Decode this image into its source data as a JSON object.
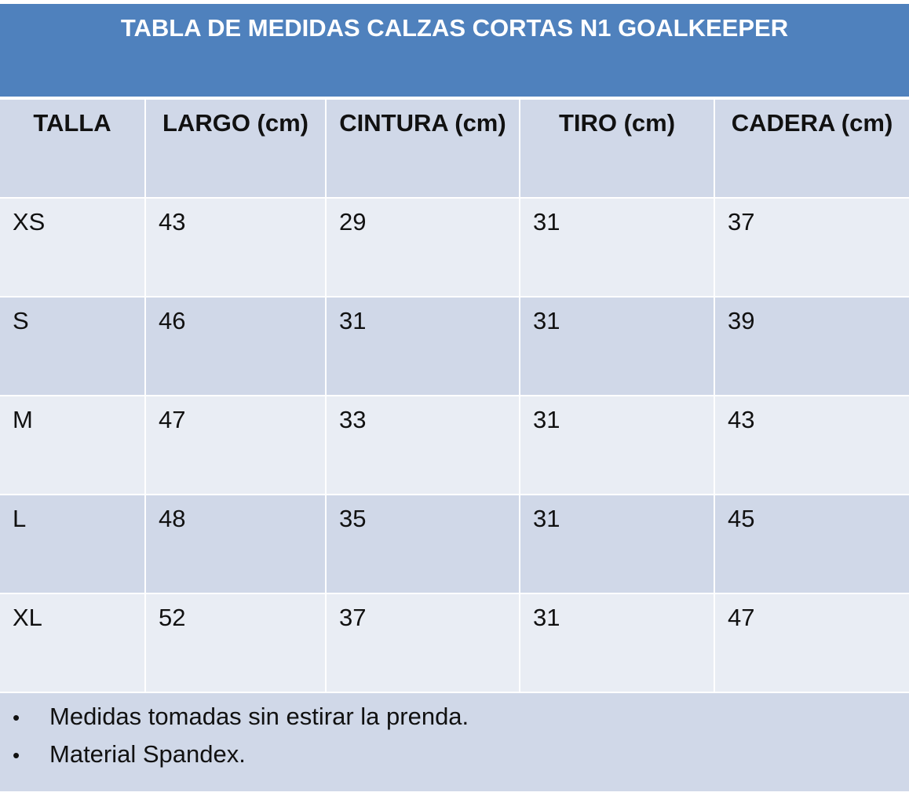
{
  "title": "TABLA DE MEDIDAS CALZAS CORTAS N1 GOALKEEPER",
  "headers": [
    "TALLA",
    "LARGO (cm)",
    "CINTURA (cm)",
    "TIRO (cm)",
    "CADERA (cm)"
  ],
  "rows": [
    [
      "XS",
      "43",
      "29",
      "31",
      "37"
    ],
    [
      "S",
      "46",
      "31",
      "31",
      "39"
    ],
    [
      "M",
      "47",
      "33",
      "31",
      "43"
    ],
    [
      "L",
      "48",
      "35",
      "31",
      "45"
    ],
    [
      "XL",
      "52",
      "37",
      "31",
      "47"
    ]
  ],
  "notes": [
    "Medidas tomadas sin estirar la prenda.",
    "Material Spandex."
  ],
  "bullet": "•",
  "colors": {
    "title_bg": "#4f81bd",
    "title_text": "#ffffff",
    "band_dark": "#d0d8e8",
    "band_light": "#e9edf4",
    "divider": "#ffffff"
  }
}
